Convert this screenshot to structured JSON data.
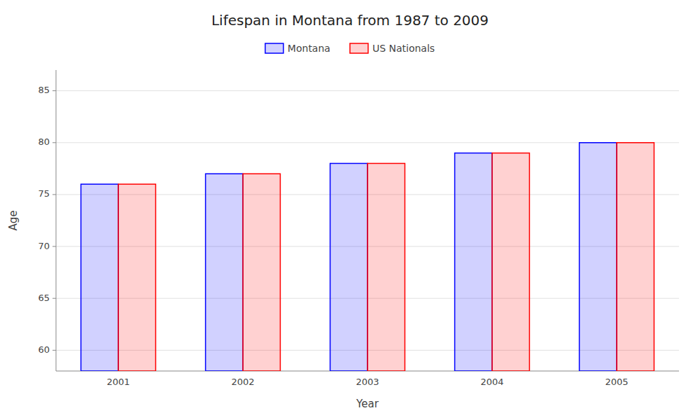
{
  "chart_data": {
    "type": "bar",
    "title": "Lifespan in Montana from 1987 to 2009",
    "x_label": "Year",
    "y_label": "Age",
    "categories": [
      "2001",
      "2002",
      "2003",
      "2004",
      "2005"
    ],
    "series": [
      {
        "name": "Montana",
        "color": "#0000ff",
        "values": [
          76.0,
          77.0,
          78.0,
          79.0,
          80.0
        ]
      },
      {
        "name": "US Nationals",
        "color": "#ff0000",
        "values": [
          76.0,
          77.0,
          78.0,
          79.0,
          80.0
        ]
      }
    ],
    "ylim": [
      58,
      87
    ],
    "yticks": [
      60,
      65,
      70,
      75,
      80,
      85
    ],
    "grid": true,
    "legend": "top"
  }
}
